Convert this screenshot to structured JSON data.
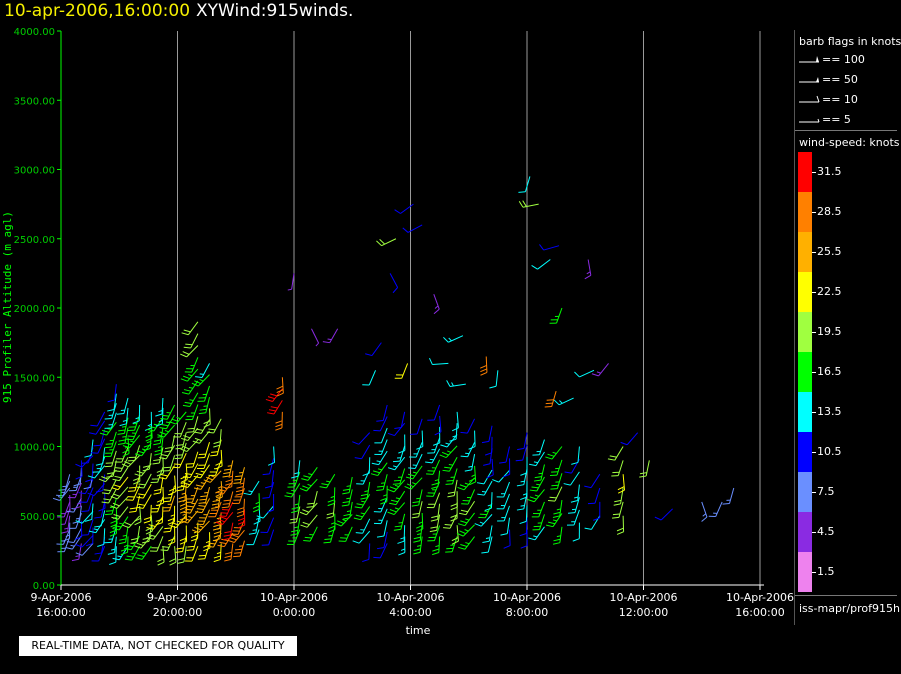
{
  "header": {
    "datetime": "10-apr-2006,16:00:00",
    "product": "XYWind:915winds."
  },
  "qc_banner": "REAL-TIME DATA, NOT CHECKED FOR QUALITY",
  "legend": {
    "barb_title": "barb flags in knots",
    "barb_items": [
      "== 100",
      "== 50",
      "== 10",
      "== 5"
    ],
    "speed_title": "wind-speed: knots",
    "speed_ticks": [
      "31.5",
      "28.5",
      "25.5",
      "22.5",
      "19.5",
      "16.5",
      "13.5",
      "10.5",
      "7.5",
      "4.5",
      "1.5"
    ],
    "speed_colors": [
      "#ff0000",
      "#ff8000",
      "#ffb000",
      "#ffff00",
      "#a0ff40",
      "#00ff00",
      "#00ffff",
      "#0000ff",
      "#6a8fff",
      "#8a2be2",
      "#ee82ee"
    ],
    "source": "iss-mapr/prof915h"
  },
  "chart_data": {
    "type": "wind-barb time-height",
    "xlabel": "time",
    "ylabel": "915 Profiler Altitude (m agl)",
    "ylim": [
      0,
      4000
    ],
    "yticks": [
      "0.00",
      "500.00",
      "1000.00",
      "1500.00",
      "2000.00",
      "2500.00",
      "3000.00",
      "3500.00",
      "4000.00"
    ],
    "xlim": [
      "2006-04-09T16:00",
      "2006-04-10T16:00"
    ],
    "xticks": [
      {
        "date": "9-Apr-2006",
        "time": "16:00:00"
      },
      {
        "date": "9-Apr-2006",
        "time": "20:00:00"
      },
      {
        "date": "10-Apr-2006",
        "time": "0:00:00"
      },
      {
        "date": "10-Apr-2006",
        "time": "4:00:00"
      },
      {
        "date": "10-Apr-2006",
        "time": "8:00:00"
      },
      {
        "date": "10-Apr-2006",
        "time": "12:00:00"
      },
      {
        "date": "10-Apr-2006",
        "time": "16:00:00"
      }
    ],
    "grid": "vertical",
    "profiles": [
      {
        "hour": 0.3,
        "bottom": 350,
        "top": 800,
        "speeds": [
          6,
          7,
          6,
          5,
          4,
          5,
          4,
          6,
          7,
          6
        ]
      },
      {
        "hour": 0.7,
        "bottom": 300,
        "top": 900,
        "speeds": [
          5,
          6,
          8,
          9,
          8,
          7,
          6,
          5,
          5,
          6,
          8,
          9
        ]
      },
      {
        "hour": 1.1,
        "bottom": 300,
        "top": 1050,
        "speeds": [
          8,
          9,
          10,
          11,
          12,
          12,
          11,
          10,
          9,
          8,
          9,
          10,
          11,
          12
        ]
      },
      {
        "hour": 1.5,
        "bottom": 280,
        "top": 1250,
        "speeds": [
          10,
          11,
          12,
          13,
          12,
          11,
          10,
          10,
          11,
          12,
          13,
          12,
          11,
          10,
          9,
          9
        ]
      },
      {
        "hour": 1.9,
        "bottom": 280,
        "top": 1450,
        "speeds": [
          12,
          13,
          14,
          15,
          16,
          17,
          18,
          19,
          20,
          19,
          18,
          17,
          16,
          15,
          14,
          13,
          12,
          11
        ]
      },
      {
        "hour": 2.3,
        "bottom": 280,
        "top": 1350,
        "speeds": [
          14,
          15,
          16,
          17,
          18,
          19,
          20,
          21,
          20,
          19,
          18,
          17,
          16,
          15,
          14,
          13
        ]
      },
      {
        "hour": 2.7,
        "bottom": 280,
        "top": 1300,
        "speeds": [
          16,
          17,
          18,
          19,
          20,
          21,
          22,
          21,
          20,
          19,
          18,
          17,
          16,
          15,
          14
        ]
      },
      {
        "hour": 3.1,
        "bottom": 280,
        "top": 1250,
        "speeds": [
          17,
          18,
          19,
          20,
          21,
          22,
          21,
          20,
          19,
          18,
          17,
          16,
          15,
          14
        ]
      },
      {
        "hour": 3.5,
        "bottom": 280,
        "top": 1350,
        "speeds": [
          18,
          19,
          20,
          21,
          22,
          23,
          22,
          21,
          20,
          19,
          18,
          17,
          16,
          15,
          14,
          13
        ]
      },
      {
        "hour": 3.9,
        "bottom": 280,
        "top": 1300,
        "speeds": [
          19,
          20,
          21,
          22,
          23,
          24,
          23,
          22,
          21,
          20,
          19,
          18,
          17,
          16,
          15
        ]
      },
      {
        "hour": 4.3,
        "bottom": 280,
        "top": 1250,
        "speeds": [
          20,
          21,
          22,
          23,
          24,
          25,
          24,
          23,
          22,
          21,
          20,
          19,
          18,
          17
        ]
      },
      {
        "hour": 4.7,
        "bottom": 280,
        "top": 1900,
        "speeds": [
          21,
          22,
          23,
          24,
          25,
          24,
          23,
          22,
          21,
          20,
          19,
          18,
          17,
          16,
          15,
          16,
          17,
          18,
          19,
          20
        ]
      },
      {
        "hour": 5.1,
        "bottom": 300,
        "top": 1600,
        "speeds": [
          22,
          23,
          24,
          25,
          26,
          25,
          24,
          23,
          22,
          21,
          20,
          19,
          18,
          17,
          16,
          15,
          14
        ]
      },
      {
        "hour": 5.5,
        "bottom": 300,
        "top": 1200,
        "speeds": [
          23,
          24,
          25,
          26,
          27,
          26,
          25,
          24,
          23,
          22,
          21,
          20,
          19
        ]
      },
      {
        "hour": 5.9,
        "bottom": 300,
        "top": 900,
        "speeds": [
          28,
          29,
          30,
          31,
          30,
          29,
          28,
          27,
          26
        ]
      },
      {
        "hour": 6.3,
        "bottom": 320,
        "top": 850,
        "speeds": [
          27,
          28,
          29,
          30,
          29,
          28,
          27,
          26
        ]
      },
      {
        "hour": 6.8,
        "bottom": 400,
        "top": 750,
        "speeds": [
          12,
          13,
          14,
          15,
          13
        ]
      },
      {
        "hour": 7.3,
        "bottom": 400,
        "top": 1000,
        "speeds": [
          10,
          11,
          12,
          10,
          9,
          10,
          11,
          12
        ]
      },
      {
        "hour": 7.6,
        "bottom": 1250,
        "top": 1500,
        "speeds": [
          28,
          30,
          31,
          29
        ]
      },
      {
        "hour": 8.2,
        "bottom": 400,
        "top": 900,
        "speeds": [
          16,
          17,
          18,
          17,
          16,
          15,
          14
        ]
      },
      {
        "hour": 8.8,
        "bottom": 420,
        "top": 850,
        "speeds": [
          17,
          18,
          19,
          18,
          17,
          16
        ]
      },
      {
        "hour": 9.4,
        "bottom": 420,
        "top": 800,
        "speeds": [
          16,
          17,
          18,
          17,
          16
        ]
      },
      {
        "hour": 10.0,
        "bottom": 420,
        "top": 780,
        "speeds": [
          15,
          16,
          17,
          16,
          15
        ]
      },
      {
        "hour": 10.6,
        "bottom": 300,
        "top": 1100,
        "speeds": [
          11,
          12,
          14,
          16,
          17,
          16,
          14,
          12,
          11,
          10
        ]
      },
      {
        "hour": 11.2,
        "bottom": 300,
        "top": 1300,
        "speeds": [
          10,
          11,
          12,
          13,
          14,
          15,
          16,
          15,
          14,
          13,
          12,
          11,
          10
        ]
      },
      {
        "hour": 11.8,
        "bottom": 350,
        "top": 1250,
        "speeds": [
          13,
          14,
          15,
          16,
          17,
          16,
          15,
          14,
          13,
          12,
          11,
          10
        ]
      },
      {
        "hour": 12.4,
        "bottom": 350,
        "top": 1200,
        "speeds": [
          15,
          16,
          17,
          18,
          17,
          16,
          15,
          14,
          13,
          12,
          11
        ]
      },
      {
        "hour": 13.0,
        "bottom": 350,
        "top": 1300,
        "speeds": [
          16,
          17,
          18,
          19,
          18,
          17,
          16,
          15,
          14,
          13,
          12,
          11,
          10
        ]
      },
      {
        "hour": 13.6,
        "bottom": 350,
        "top": 1250,
        "speeds": [
          17,
          18,
          19,
          20,
          19,
          18,
          17,
          16,
          15,
          14,
          13,
          12
        ]
      },
      {
        "hour": 14.2,
        "bottom": 350,
        "top": 1200,
        "speeds": [
          15,
          16,
          17,
          18,
          17,
          16,
          15,
          14,
          13,
          12,
          11
        ]
      },
      {
        "hour": 14.8,
        "bottom": 350,
        "top": 1150,
        "speeds": [
          12,
          13,
          14,
          15,
          14,
          13,
          12,
          11,
          10,
          10,
          11
        ]
      },
      {
        "hour": 15.4,
        "bottom": 400,
        "top": 1000,
        "speeds": [
          11,
          12,
          13,
          14,
          13,
          12,
          11,
          10
        ]
      },
      {
        "hour": 16.0,
        "bottom": 400,
        "top": 1100,
        "speeds": [
          10,
          11,
          12,
          13,
          14,
          13,
          12,
          11,
          10
        ]
      },
      {
        "hour": 16.6,
        "bottom": 420,
        "top": 1050,
        "speeds": [
          14,
          15,
          16,
          17,
          16,
          15,
          14,
          13
        ]
      },
      {
        "hour": 17.2,
        "bottom": 420,
        "top": 1000,
        "speeds": [
          15,
          16,
          17,
          18,
          17,
          16,
          15
        ]
      },
      {
        "hour": 17.8,
        "bottom": 450,
        "top": 1000,
        "speeds": [
          12,
          13,
          14,
          13,
          12,
          11,
          12
        ]
      },
      {
        "hour": 18.5,
        "bottom": 500,
        "top": 800,
        "speeds": [
          12,
          11,
          10,
          9
        ]
      },
      {
        "hour": 19.3,
        "bottom": 500,
        "top": 1000,
        "speeds": [
          18,
          19,
          20,
          21,
          20,
          19
        ]
      }
    ],
    "scattered": [
      {
        "hour": 8.0,
        "alt": 2250,
        "speed": 4
      },
      {
        "hour": 8.6,
        "alt": 1850,
        "speed": 4
      },
      {
        "hour": 9.5,
        "alt": 1850,
        "speed": 5
      },
      {
        "hour": 10.8,
        "alt": 1550,
        "speed": 12
      },
      {
        "hour": 11.0,
        "alt": 1750,
        "speed": 11
      },
      {
        "hour": 11.3,
        "alt": 2250,
        "speed": 10
      },
      {
        "hour": 11.5,
        "alt": 2500,
        "speed": 19
      },
      {
        "hour": 11.9,
        "alt": 1600,
        "speed": 21
      },
      {
        "hour": 12.1,
        "alt": 2750,
        "speed": 10
      },
      {
        "hour": 12.4,
        "alt": 2600,
        "speed": 9
      },
      {
        "hour": 12.8,
        "alt": 2100,
        "speed": 5
      },
      {
        "hour": 13.3,
        "alt": 1600,
        "speed": 12
      },
      {
        "hour": 13.8,
        "alt": 1800,
        "speed": 14
      },
      {
        "hour": 13.9,
        "alt": 1450,
        "speed": 13
      },
      {
        "hour": 14.6,
        "alt": 1650,
        "speed": 29
      },
      {
        "hour": 15.0,
        "alt": 1550,
        "speed": 12
      },
      {
        "hour": 16.1,
        "alt": 2950,
        "speed": 12
      },
      {
        "hour": 16.4,
        "alt": 2750,
        "speed": 18
      },
      {
        "hour": 16.8,
        "alt": 2350,
        "speed": 12
      },
      {
        "hour": 17.1,
        "alt": 2450,
        "speed": 10
      },
      {
        "hour": 17.2,
        "alt": 2000,
        "speed": 17
      },
      {
        "hour": 17.0,
        "alt": 1400,
        "speed": 29
      },
      {
        "hour": 17.6,
        "alt": 1350,
        "speed": 14
      },
      {
        "hour": 18.1,
        "alt": 2350,
        "speed": 5
      },
      {
        "hour": 18.3,
        "alt": 1550,
        "speed": 12
      },
      {
        "hour": 18.8,
        "alt": 1600,
        "speed": 5
      },
      {
        "hour": 19.8,
        "alt": 1100,
        "speed": 10
      },
      {
        "hour": 20.2,
        "alt": 900,
        "speed": 20
      },
      {
        "hour": 21.0,
        "alt": 550,
        "speed": 11
      },
      {
        "hour": 22.0,
        "alt": 600,
        "speed": 6
      },
      {
        "hour": 22.7,
        "alt": 600,
        "speed": 6
      },
      {
        "hour": 23.1,
        "alt": 700,
        "speed": 6
      }
    ]
  }
}
